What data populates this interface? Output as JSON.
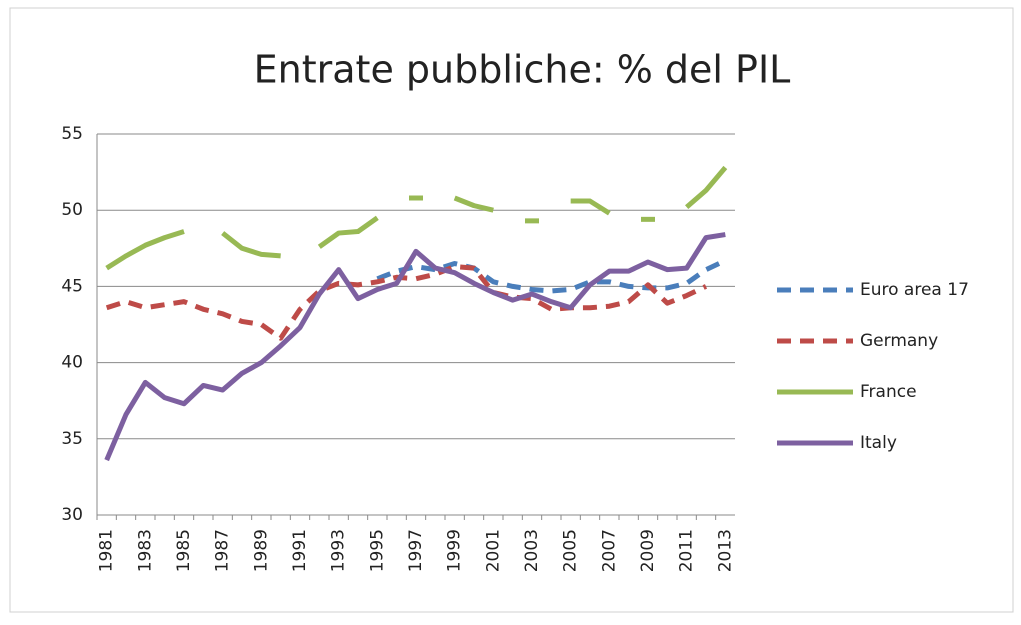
{
  "chart_data": {
    "type": "line",
    "title": "Entrate pubbliche: % del PIL",
    "categories": [
      "1981",
      null,
      "1983",
      null,
      "1985",
      null,
      "1987",
      null,
      "1989",
      null,
      "1991",
      null,
      "1993",
      null,
      "1995",
      null,
      "1997",
      null,
      "1999",
      null,
      "2001",
      null,
      "2003",
      null,
      "2005",
      null,
      "2007",
      null,
      "2009",
      null,
      "2011",
      null,
      "2013"
    ],
    "series": [
      {
        "name": "Euro area 17",
        "color": "#4a7ebb",
        "style": "dashed",
        "values": [
          null,
          null,
          null,
          null,
          null,
          null,
          null,
          null,
          null,
          null,
          null,
          null,
          null,
          null,
          45.5,
          46.0,
          46.3,
          46.1,
          46.5,
          46.2,
          45.3,
          45.0,
          44.8,
          44.7,
          44.8,
          45.3,
          45.3,
          45.0,
          44.9,
          44.9,
          45.2,
          46.1,
          46.7
        ]
      },
      {
        "name": "Germany",
        "color": "#be4b48",
        "style": "dashed",
        "values": [
          43.6,
          44.0,
          43.6,
          43.8,
          44.0,
          43.5,
          43.2,
          42.7,
          42.5,
          41.6,
          43.5,
          44.7,
          45.2,
          45.1,
          45.3,
          45.6,
          45.5,
          45.8,
          46.3,
          46.2,
          44.6,
          44.3,
          44.2,
          43.5,
          43.6,
          43.6,
          43.7,
          44.0,
          45.1,
          43.9,
          44.4,
          45.0,
          null
        ]
      },
      {
        "name": "France",
        "color": "#98b954",
        "style": "solid",
        "values": [
          46.2,
          47.0,
          47.7,
          48.2,
          48.6,
          null,
          48.5,
          47.5,
          47.1,
          47.0,
          null,
          47.6,
          48.5,
          48.6,
          49.5,
          null,
          50.8,
          null,
          50.8,
          50.3,
          50.0,
          null,
          49.3,
          null,
          50.6,
          50.6,
          49.8,
          null,
          49.4,
          null,
          50.2,
          51.3,
          52.8
        ]
      },
      {
        "name": "Italy",
        "color": "#7d60a0",
        "style": "solid",
        "values": [
          33.6,
          36.6,
          38.7,
          37.7,
          37.3,
          38.5,
          38.2,
          39.3,
          40.0,
          41.1,
          42.3,
          44.5,
          46.1,
          44.2,
          44.8,
          45.2,
          47.3,
          46.2,
          45.9,
          45.2,
          44.6,
          44.1,
          44.5,
          44.0,
          43.6,
          45.1,
          46.0,
          46.0,
          46.6,
          46.1,
          46.2,
          48.2,
          48.4
        ]
      }
    ],
    "ylim": [
      30,
      55
    ],
    "yticks": [
      30,
      35,
      40,
      45,
      50,
      55
    ],
    "grid": true,
    "legend": "right"
  }
}
